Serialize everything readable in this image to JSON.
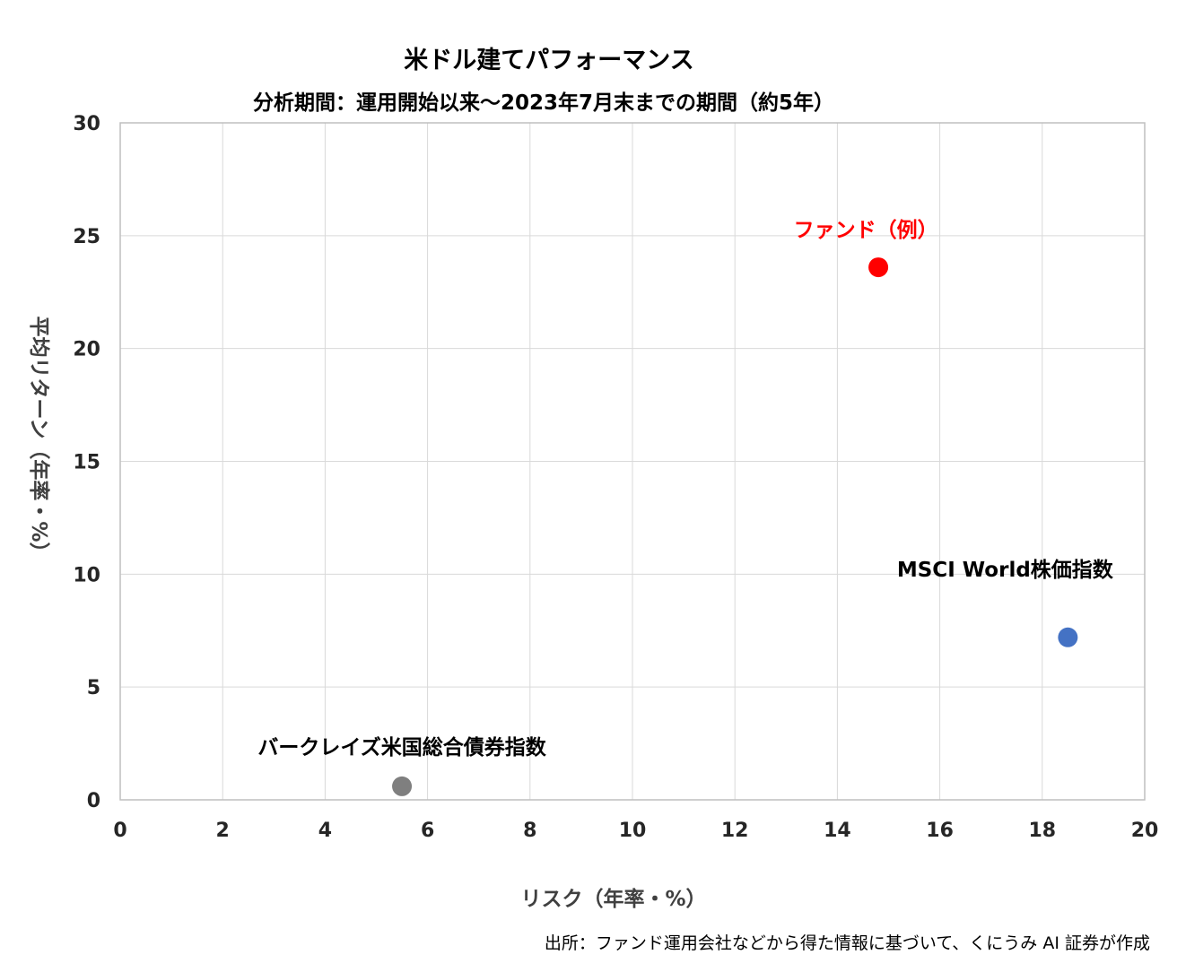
{
  "chart_data": {
    "type": "scatter",
    "title": "米ドル建てパフォーマンス",
    "subtitle": "分析期間：運用開始以来～2023年7月末までの期間（約5年）",
    "xlabel": "リスク（年率・%）",
    "ylabel": "平均リターン（年率・%）",
    "xlim": [
      0,
      20
    ],
    "ylim": [
      0,
      30
    ],
    "xticks": [
      "0",
      "2",
      "4",
      "6",
      "8",
      "10",
      "12",
      "14",
      "16",
      "18",
      "20"
    ],
    "yticks": [
      "0",
      "5",
      "10",
      "15",
      "20",
      "25",
      "30"
    ],
    "grid": true,
    "points": [
      {
        "label": "ファンド（例）",
        "x": 14.8,
        "y": 23.6,
        "color": "#ff0000",
        "label_color": "#ff0000"
      },
      {
        "label": "MSCI World株価指数",
        "x": 18.5,
        "y": 7.2,
        "color": "#4472c4",
        "label_color": "#000000"
      },
      {
        "label": "バークレイズ米国総合債券指数",
        "x": 5.5,
        "y": 0.6,
        "color": "#7f7f7f",
        "label_color": "#000000"
      }
    ]
  },
  "source_note": "出所：ファンド運用会社などから得た情報に基づいて、くにうみ AI 証券が作成"
}
